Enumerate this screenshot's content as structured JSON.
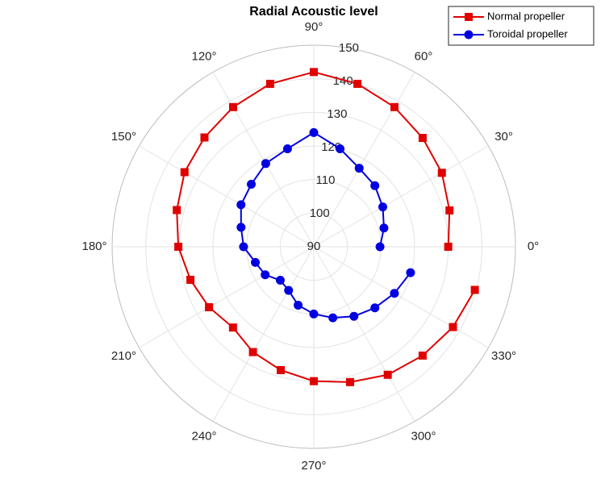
{
  "chart_data": {
    "type": "polar",
    "title": "Radial Acoustic level",
    "x": [
      0,
      15,
      30,
      45,
      60,
      75,
      90,
      105,
      120,
      135,
      150,
      165,
      180,
      195,
      210,
      225,
      240,
      255,
      270,
      285,
      300,
      315,
      330,
      345
    ],
    "series": [
      {
        "name": "Normal propeller",
        "color": "#e00000",
        "marker": "square",
        "values": [
          130,
          131.8,
          134,
          135.8,
          138,
          140.2,
          142,
          140.2,
          138,
          136,
          134.4,
          132.2,
          130.3,
          128,
          126,
          124,
          126.2,
          128,
          130,
          131.7,
          134,
          135.8,
          137.8,
          139.6
        ]
      },
      {
        "name": "Toroidal propeller",
        "color": "#0000e0",
        "marker": "circle",
        "values": [
          109.7,
          111.6,
          113.7,
          115.7,
          117,
          120.2,
          124,
          120.2,
          118.6,
          116.3,
          115,
          112.4,
          110.9,
          108,
          106.7,
          104.1,
          105,
          108,
          110,
          111.9,
          113.9,
          115.7,
          117.7,
          119.8
        ]
      }
    ],
    "ylim": [
      90,
      150
    ],
    "yticks": [
      90,
      100,
      110,
      120,
      130,
      140,
      150
    ],
    "xticks": [
      {
        "value": 0,
        "label": "0°"
      },
      {
        "value": 30,
        "label": "30°"
      },
      {
        "value": 60,
        "label": "60°"
      },
      {
        "value": 90,
        "label": "90°"
      },
      {
        "value": 120,
        "label": "120°"
      },
      {
        "value": 150,
        "label": "150°"
      },
      {
        "value": 180,
        "label": "180°"
      },
      {
        "value": 210,
        "label": "210°"
      },
      {
        "value": 240,
        "label": "240°"
      },
      {
        "value": 270,
        "label": "270°"
      },
      {
        "value": 300,
        "label": "300°"
      },
      {
        "value": 330,
        "label": "330°"
      }
    ],
    "grid": true,
    "legend": "top-right"
  }
}
